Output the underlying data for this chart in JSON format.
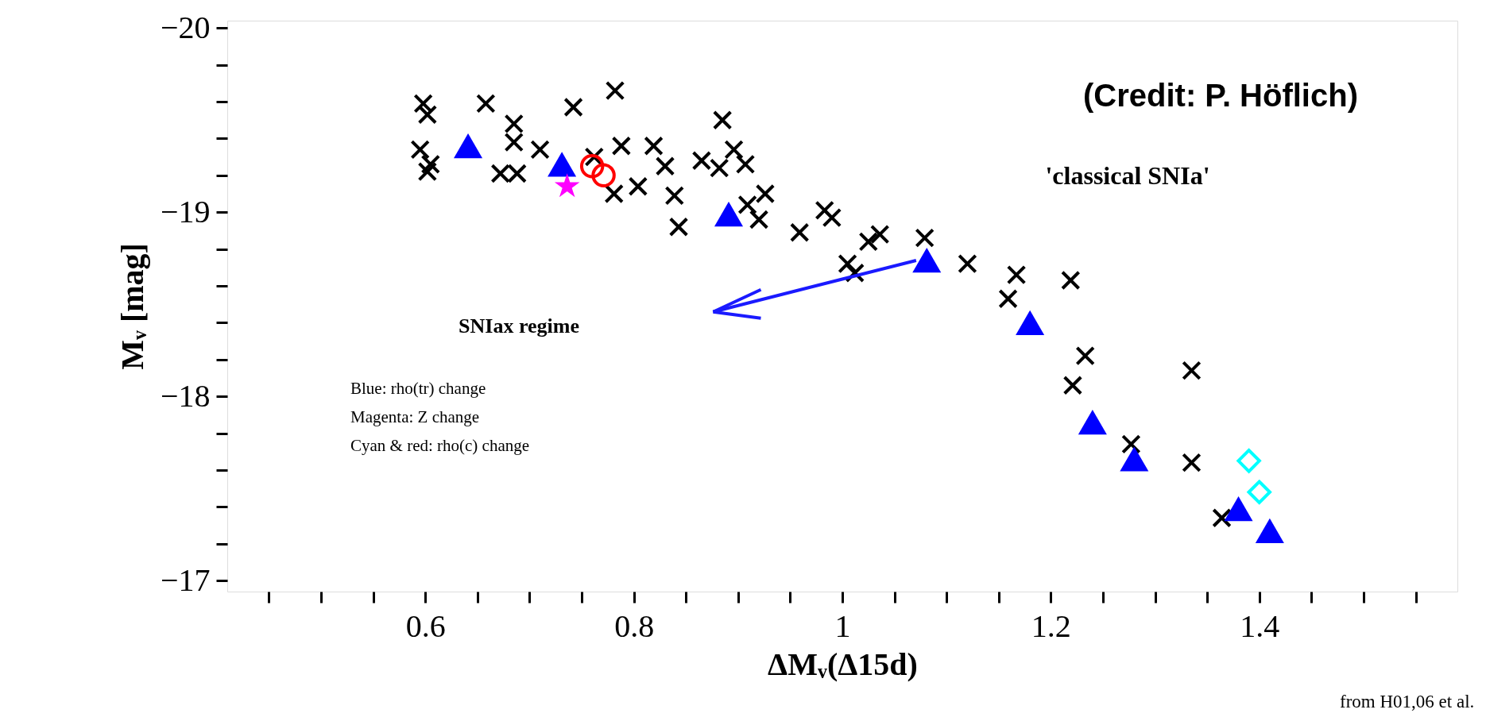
{
  "chart_data": {
    "type": "scatter",
    "xlabel": "ΔMᵥ(Δ15d)",
    "ylabel": "Mᵥ [mag]",
    "xlim": [
      0.41,
      1.59
    ],
    "ylim": [
      -16.94,
      -20.04
    ],
    "xticks": [
      {
        "value": 0.45,
        "label": null
      },
      {
        "value": 0.5,
        "label": null
      },
      {
        "value": 0.55,
        "label": null
      },
      0.6,
      {
        "value": 0.65,
        "label": null
      },
      {
        "value": 0.7,
        "label": null
      },
      {
        "value": 0.75,
        "label": null
      },
      0.8,
      {
        "value": 0.85,
        "label": null
      },
      {
        "value": 0.9,
        "label": null
      },
      {
        "value": 0.95,
        "label": null
      },
      1,
      {
        "value": 1.05,
        "label": null
      },
      {
        "value": 1.1,
        "label": null
      },
      {
        "value": 1.15,
        "label": null
      },
      1.2,
      {
        "value": 1.25,
        "label": null
      },
      {
        "value": 1.3,
        "label": null
      },
      {
        "value": 1.35,
        "label": null
      },
      1.4,
      {
        "value": 1.45,
        "label": null
      },
      {
        "value": 1.5,
        "label": null
      },
      {
        "value": 1.55,
        "label": null
      }
    ],
    "yticks": [
      {
        "value": -20,
        "label": "−20"
      },
      {
        "value": -19.8,
        "label": null
      },
      {
        "value": -19.6,
        "label": null
      },
      {
        "value": -19.4,
        "label": null
      },
      {
        "value": -19.2,
        "label": null
      },
      {
        "value": -19,
        "label": "−19"
      },
      {
        "value": -18.8,
        "label": null
      },
      {
        "value": -18.6,
        "label": null
      },
      {
        "value": -18.4,
        "label": null
      },
      {
        "value": -18.2,
        "label": null
      },
      {
        "value": -18,
        "label": "−18"
      },
      {
        "value": -17.8,
        "label": null
      },
      {
        "value": -17.6,
        "label": null
      },
      {
        "value": -17.4,
        "label": null
      },
      {
        "value": -17.2,
        "label": null
      },
      {
        "value": -17,
        "label": "−17"
      }
    ],
    "grid": false,
    "legend": false,
    "series": [
      {
        "color": "#000000",
        "marker": "cross",
        "x": [
          0.598,
          0.602,
          0.595,
          0.605,
          0.602,
          0.658,
          0.685,
          0.685,
          0.672,
          0.688,
          0.71,
          0.742,
          0.782,
          0.788,
          0.762,
          0.781,
          0.819,
          0.804,
          0.83,
          0.839,
          0.843,
          0.865,
          0.885,
          0.882,
          0.907,
          0.896,
          0.926,
          0.92,
          0.909,
          0.959,
          0.983,
          0.99,
          1.025,
          1.036,
          1.012,
          1.005,
          1.079,
          1.12,
          1.167,
          1.159,
          1.219,
          1.233,
          1.221,
          1.335,
          1.335,
          1.364,
          1.277
        ],
        "values": [
          -19.59,
          -19.53,
          -19.34,
          -19.26,
          -19.22,
          -19.59,
          -19.48,
          -19.38,
          -19.21,
          -19.21,
          -19.34,
          -19.57,
          -19.66,
          -19.36,
          -19.3,
          -19.1,
          -19.36,
          -19.14,
          -19.25,
          -19.09,
          -18.92,
          -19.28,
          -19.5,
          -19.24,
          -19.26,
          -19.34,
          -19.1,
          -18.96,
          -19.04,
          -18.89,
          -19.01,
          -18.97,
          -18.84,
          -18.88,
          -18.67,
          -18.72,
          -18.86,
          -18.72,
          -18.66,
          -18.53,
          -18.63,
          -18.22,
          -18.06,
          -18.14,
          -17.64,
          -17.34,
          -17.74
        ]
      },
      {
        "color": "#0000ff",
        "marker": "triangle",
        "x": [
          0.641,
          0.731,
          0.891,
          1.081,
          1.18,
          1.24,
          1.28,
          1.38,
          1.41
        ],
        "values": [
          -19.36,
          -19.26,
          -18.99,
          -18.74,
          -18.4,
          -17.86,
          -17.66,
          -17.39,
          -17.27
        ]
      },
      {
        "color": "#ff00ff",
        "marker": "star",
        "x": [
          0.736
        ],
        "values": [
          -19.14
        ]
      },
      {
        "color": "#ff0000",
        "marker": "circle",
        "x": [
          0.76,
          0.771
        ],
        "values": [
          -19.25,
          -19.2
        ]
      },
      {
        "color": "#00ffff",
        "marker": "diamond",
        "x": [
          1.39,
          1.4
        ],
        "values": [
          -17.65,
          -17.48
        ]
      }
    ],
    "annotations": [
      "'classical  SNIa'",
      "SNIax regime",
      "Blue: rho(tr) change",
      "Magenta: Z change",
      "Cyan & red: rho(c) change",
      "(Credit: P. Höflich)",
      "from H01,06 et al."
    ]
  }
}
